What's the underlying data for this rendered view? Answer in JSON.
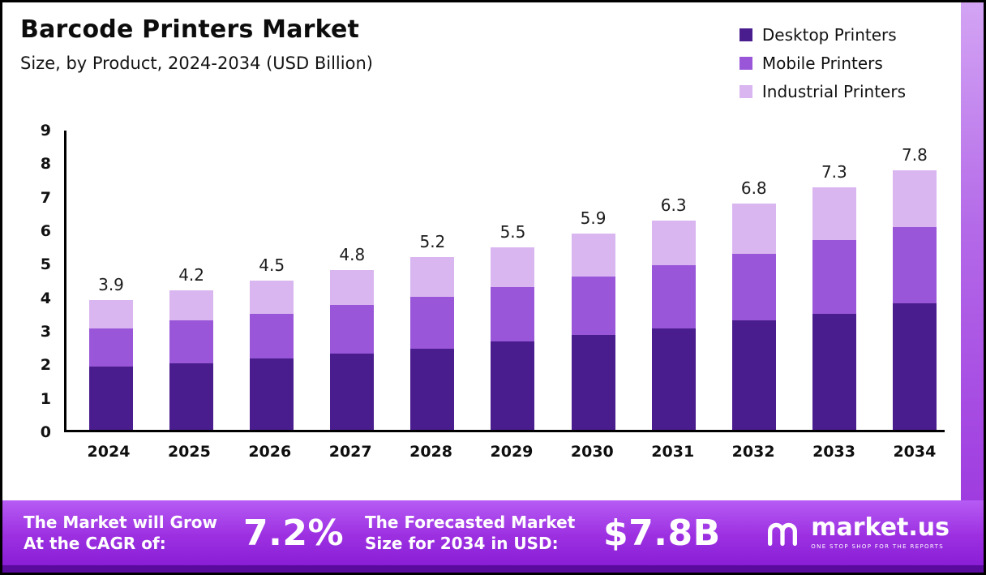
{
  "header": {
    "title": "Barcode Printers Market",
    "subtitle": "Size, by Product, 2024-2034 (USD Billion)"
  },
  "legend": [
    {
      "label": "Desktop Printers",
      "color": "#491d8d"
    },
    {
      "label": "Mobile Printers",
      "color": "#9956d8"
    },
    {
      "label": "Industrial Printers",
      "color": "#d9b6f0"
    }
  ],
  "chart_data": {
    "type": "bar",
    "stacked": true,
    "title": "Barcode Printers Market Size, by Product, 2024-2034 (USD Billion)",
    "categories": [
      "2024",
      "2025",
      "2026",
      "2027",
      "2028",
      "2029",
      "2030",
      "2031",
      "2032",
      "2033",
      "2034"
    ],
    "series": [
      {
        "name": "Desktop Printers",
        "color": "#491d8d",
        "values": [
          1.9,
          2.0,
          2.15,
          2.3,
          2.45,
          2.65,
          2.85,
          3.05,
          3.3,
          3.5,
          3.8
        ]
      },
      {
        "name": "Mobile Printers",
        "color": "#9956d8",
        "values": [
          1.15,
          1.3,
          1.35,
          1.45,
          1.55,
          1.65,
          1.75,
          1.9,
          2.0,
          2.2,
          2.3
        ]
      },
      {
        "name": "Industrial Printers",
        "color": "#d9b6f0",
        "values": [
          0.85,
          0.9,
          1.0,
          1.05,
          1.2,
          1.2,
          1.3,
          1.35,
          1.5,
          1.6,
          1.7
        ]
      }
    ],
    "totals": [
      3.9,
      4.2,
      4.5,
      4.8,
      5.2,
      5.5,
      5.9,
      6.3,
      6.8,
      7.3,
      7.8
    ],
    "ylim": [
      0,
      9
    ],
    "yticks": [
      0,
      1,
      2,
      3,
      4,
      5,
      6,
      7,
      8,
      9
    ],
    "xlabel": "",
    "ylabel": "",
    "grid": false,
    "legend_position": "top-right"
  },
  "banner": {
    "cagr_label": "The Market will Grow At the CAGR of:",
    "cagr_value": "7.2%",
    "forecast_label": "The Forecasted Market Size for 2034 in USD:",
    "forecast_value": "$7.8B",
    "brand": "market.us",
    "tagline": "ONE STOP SHOP FOR THE REPORTS"
  },
  "colors": {
    "banner_top": "#b65cf4",
    "banner_bottom": "#8a1ed6",
    "banner_edge": "#5a0b9e",
    "strip_top": "#d3a4f4",
    "strip_bottom": "#9f3ce0",
    "axis": "#000000",
    "text": "#111111"
  }
}
